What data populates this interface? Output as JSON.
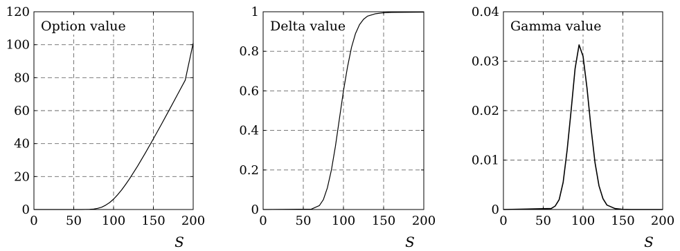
{
  "chart_data": [
    {
      "type": "line",
      "title": "Option value",
      "xlabel": "S",
      "xlim": [
        0,
        200
      ],
      "ylim": [
        0,
        120
      ],
      "xticks": [
        0,
        50,
        100,
        150,
        200
      ],
      "yticks": [
        0,
        20,
        40,
        60,
        80,
        100,
        120
      ],
      "xtick_labels": [
        "0",
        "50",
        "100",
        "150",
        "200"
      ],
      "ytick_labels": [
        "0",
        "20",
        "40",
        "60",
        "80",
        "100",
        "120"
      ],
      "grid": true,
      "series": [
        {
          "x": [
            0,
            60,
            70,
            75,
            80,
            85,
            90,
            95,
            100,
            105,
            110,
            115,
            120,
            130,
            140,
            150,
            160,
            170,
            180,
            190,
            200
          ],
          "y": [
            0,
            0,
            0.1,
            0.3,
            0.7,
            1.4,
            2.6,
            4.2,
            6.3,
            8.9,
            11.8,
            15.1,
            18.6,
            26.2,
            34.4,
            42.9,
            51.6,
            60.5,
            69.5,
            78.5,
            101
          ]
        }
      ]
    },
    {
      "type": "line",
      "title": "Delta value",
      "xlabel": "S",
      "xlim": [
        0,
        200
      ],
      "ylim": [
        0,
        1
      ],
      "xticks": [
        0,
        50,
        100,
        150,
        200
      ],
      "yticks": [
        0,
        0.2,
        0.4,
        0.6,
        0.8,
        1
      ],
      "xtick_labels": [
        "0",
        "50",
        "100",
        "150",
        "200"
      ],
      "ytick_labels": [
        "0",
        "0.2",
        "0.4",
        "0.6",
        "0.8",
        "1"
      ],
      "grid": true,
      "series": [
        {
          "x": [
            0,
            60,
            70,
            75,
            80,
            85,
            90,
            95,
            100,
            105,
            110,
            115,
            120,
            125,
            130,
            140,
            150,
            160,
            200
          ],
          "y": [
            0,
            0.002,
            0.02,
            0.05,
            0.11,
            0.2,
            0.32,
            0.46,
            0.6,
            0.72,
            0.82,
            0.89,
            0.935,
            0.962,
            0.978,
            0.99,
            0.995,
            0.997,
            0.998
          ]
        }
      ]
    },
    {
      "type": "line",
      "title": "Gamma value",
      "xlabel": "S",
      "xlim": [
        0,
        200
      ],
      "ylim": [
        0,
        0.04
      ],
      "xticks": [
        0,
        50,
        100,
        150,
        200
      ],
      "yticks": [
        0,
        0.01,
        0.02,
        0.03,
        0.04
      ],
      "xtick_labels": [
        "0",
        "50",
        "100",
        "150",
        "200"
      ],
      "ytick_labels": [
        "0",
        "0.01",
        "0.02",
        "0.03",
        "0.04"
      ],
      "grid": true,
      "series": [
        {
          "x": [
            0,
            60,
            65,
            70,
            75,
            80,
            85,
            90,
            95,
            100,
            105,
            110,
            115,
            120,
            125,
            130,
            140,
            150,
            160,
            200
          ],
          "y": [
            0,
            0.0002,
            0.0007,
            0.002,
            0.0055,
            0.012,
            0.02,
            0.0285,
            0.0333,
            0.031,
            0.0245,
            0.0165,
            0.0095,
            0.0048,
            0.0022,
            0.0009,
            0.0002,
            3e-05,
            0,
            0
          ]
        }
      ]
    }
  ]
}
